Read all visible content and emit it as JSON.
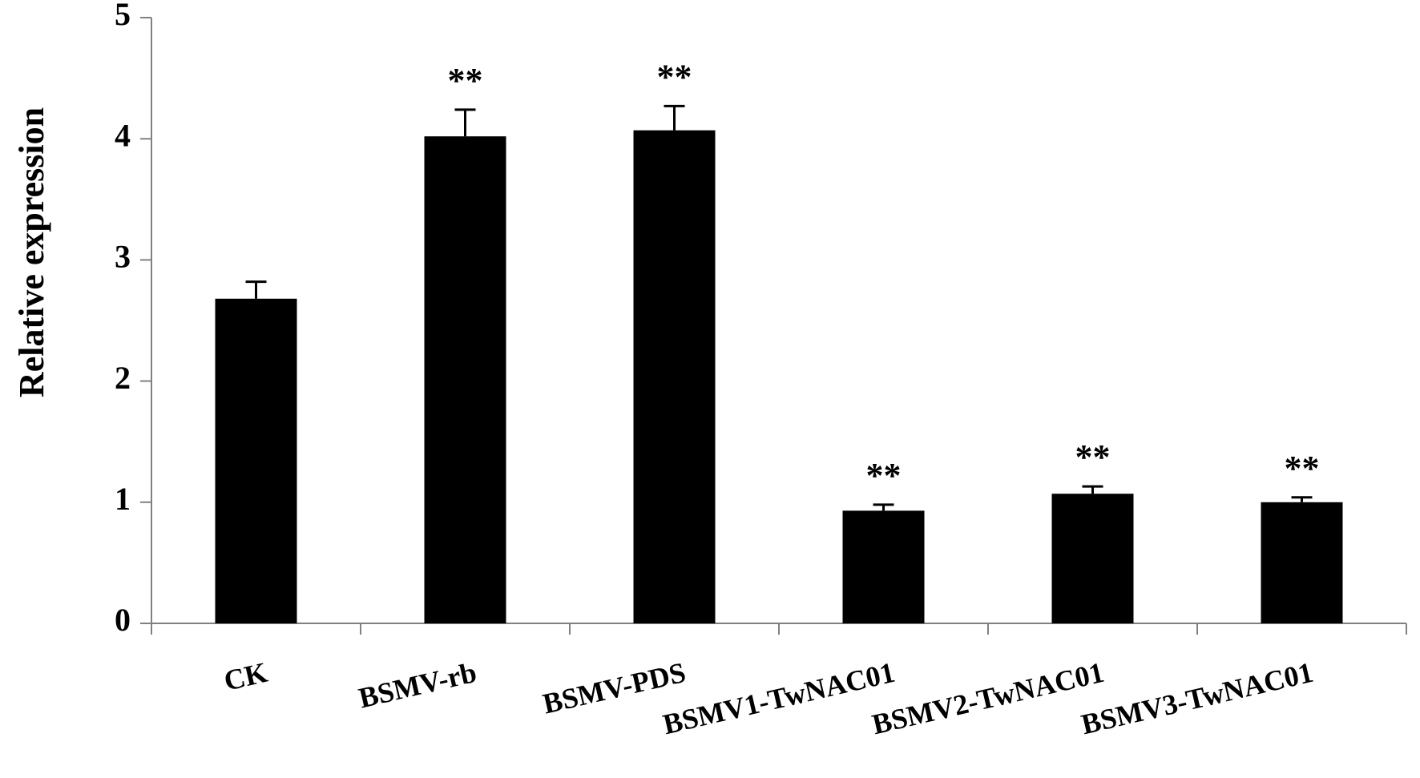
{
  "chart_data": {
    "type": "bar",
    "categories": [
      "CK",
      "BSMV-rb",
      "BSMV-PDS",
      "BSMV1-TwNAC01",
      "BSMV2-TwNAC01",
      "BSMV3-TwNAC01"
    ],
    "series": [
      {
        "values": [
          2.68,
          4.02,
          4.07,
          0.93,
          1.07,
          1.0
        ],
        "errors": [
          0.14,
          0.22,
          0.2,
          0.05,
          0.06,
          0.04
        ],
        "significance": [
          "",
          "**",
          "**",
          "**",
          "**",
          "**"
        ]
      }
    ],
    "ylabel": "Relative expression",
    "ylim": [
      0,
      5
    ],
    "yticks": [
      "0",
      "1",
      "2",
      "3",
      "4",
      "5"
    ],
    "colors": {
      "bar": "#000000",
      "axis": "#808080"
    },
    "grid": false,
    "legend": "none"
  }
}
